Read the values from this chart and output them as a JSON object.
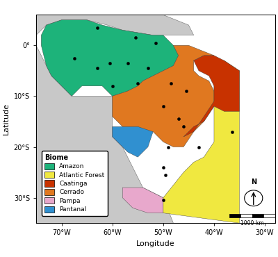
{
  "title": "",
  "xlabel": "Longitude",
  "ylabel": "Latitude",
  "xlim": [
    -75,
    -28
  ],
  "ylim": [
    -35,
    6
  ],
  "xticks": [
    -70,
    -60,
    -50,
    -40,
    -30
  ],
  "yticks": [
    0,
    -10,
    -20,
    -30
  ],
  "xtick_labels": [
    "70°W",
    "60°W",
    "50°W",
    "40°W",
    "30°W"
  ],
  "ytick_labels": [
    "0°",
    "10°S",
    "20°S",
    "30°S"
  ],
  "biome_colors": {
    "Amazon": "#1db37a",
    "Atlantic_Forest": "#f0e840",
    "Caatinga": "#c83200",
    "Cerrado": "#e07820",
    "Pampa": "#e8a8cc",
    "Pantanal": "#3090d0"
  },
  "legend_labels": [
    "Amazon",
    "Atlantic Forest",
    "Caatinga",
    "Cerrado",
    "Pampa",
    "Pantanal"
  ],
  "legend_colors": [
    "#1db37a",
    "#f0e840",
    "#c83200",
    "#e07820",
    "#e8a8cc",
    "#3090d0"
  ],
  "sample_points": [
    [
      -55.5,
      1.5
    ],
    [
      -51.5,
      0.5
    ],
    [
      -63,
      3.5
    ],
    [
      -67.5,
      -2.5
    ],
    [
      -63,
      -4.5
    ],
    [
      -60.5,
      -3.5
    ],
    [
      -57,
      -3.5
    ],
    [
      -53,
      -4.5
    ],
    [
      -60,
      -8
    ],
    [
      -55,
      -7.5
    ],
    [
      -48.5,
      -7.5
    ],
    [
      -45.5,
      -9
    ],
    [
      -50,
      -12
    ],
    [
      -47,
      -14.5
    ],
    [
      -46,
      -16
    ],
    [
      -49,
      -20
    ],
    [
      -43,
      -20
    ],
    [
      -50,
      -24
    ],
    [
      -49.5,
      -25.5
    ],
    [
      -50,
      -30.5
    ],
    [
      -36.5,
      -17
    ]
  ],
  "land_color": "#c8c8c8",
  "ocean_color": "#ffffff",
  "border_color": "#707070",
  "brazil_border_color": "#404040"
}
